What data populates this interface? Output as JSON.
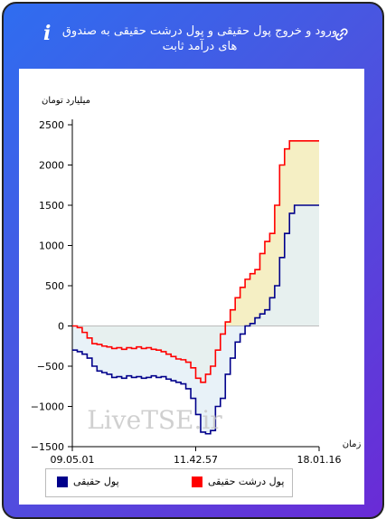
{
  "header": {
    "title": "ورود و خروج پول حقیقی و پول درشت حقیقی به صندوق های درآمد ثابت",
    "info_icon": "info-icon",
    "link_icon": "link-icon"
  },
  "watermark": "LiveTSE.ir",
  "colors": {
    "real_money": "#00008b",
    "big_real_money": "#ff0000",
    "fill_positive": "#f5efc4",
    "fill_negative": "#e4f0f7"
  },
  "chart_data": {
    "type": "line",
    "title": "",
    "ylabel": "میلیارد تومان",
    "xlabel": "زمان",
    "ylim": [
      -1500,
      2500
    ],
    "yticks": [
      2500,
      2000,
      1500,
      1000,
      500,
      0,
      -500,
      -1000,
      -1500
    ],
    "xlim": [
      0,
      100
    ],
    "xtick_labels": [
      {
        "x": 0,
        "label": "09.05.01"
      },
      {
        "x": 50,
        "label": "11.42.57"
      },
      {
        "x": 100,
        "label": "18.01.16"
      }
    ],
    "grid": false,
    "legend": "bottom",
    "series": [
      {
        "name": "پول حقیقی",
        "color": "#00008b",
        "x": [
          0,
          2,
          4,
          6,
          8,
          10,
          12,
          14,
          16,
          18,
          20,
          22,
          24,
          26,
          28,
          30,
          32,
          34,
          36,
          38,
          40,
          42,
          44,
          46,
          48,
          50,
          52,
          54,
          56,
          58,
          60,
          62,
          64,
          66,
          68,
          70,
          72,
          74,
          76,
          78,
          80,
          82,
          84,
          86,
          88,
          90,
          92,
          94,
          96,
          98,
          100
        ],
        "values": [
          -300,
          -320,
          -350,
          -400,
          -500,
          -560,
          -580,
          -600,
          -640,
          -630,
          -650,
          -620,
          -640,
          -630,
          -650,
          -640,
          -620,
          -640,
          -630,
          -660,
          -680,
          -700,
          -720,
          -780,
          -900,
          -1100,
          -1320,
          -1340,
          -1300,
          -1000,
          -900,
          -600,
          -400,
          -200,
          -100,
          0,
          30,
          100,
          150,
          200,
          350,
          500,
          850,
          1150,
          1400,
          1500,
          1500,
          1500,
          1500,
          1500,
          1500
        ]
      },
      {
        "name": "پول درشت حقیقی",
        "color": "#ff0000",
        "x": [
          0,
          2,
          4,
          6,
          8,
          10,
          12,
          14,
          16,
          18,
          20,
          22,
          24,
          26,
          28,
          30,
          32,
          34,
          36,
          38,
          40,
          42,
          44,
          46,
          48,
          50,
          52,
          54,
          56,
          58,
          60,
          62,
          64,
          66,
          68,
          70,
          72,
          74,
          76,
          78,
          80,
          82,
          84,
          86,
          88,
          90,
          92,
          94,
          96,
          98,
          100
        ],
        "values": [
          0,
          -20,
          -80,
          -150,
          -220,
          -230,
          -250,
          -260,
          -280,
          -270,
          -290,
          -270,
          -280,
          -260,
          -280,
          -270,
          -290,
          -300,
          -320,
          -350,
          -380,
          -410,
          -420,
          -450,
          -520,
          -650,
          -700,
          -600,
          -500,
          -300,
          -100,
          50,
          200,
          350,
          480,
          580,
          650,
          700,
          900,
          1050,
          1150,
          1500,
          2000,
          2200,
          2300,
          2300,
          2300,
          2300,
          2300,
          2300,
          2300
        ]
      }
    ]
  },
  "legend": {
    "items": [
      {
        "label": "پول حقیقی",
        "color": "#00008b"
      },
      {
        "label": "پول درشت حقیقی",
        "color": "#ff0000"
      }
    ]
  }
}
